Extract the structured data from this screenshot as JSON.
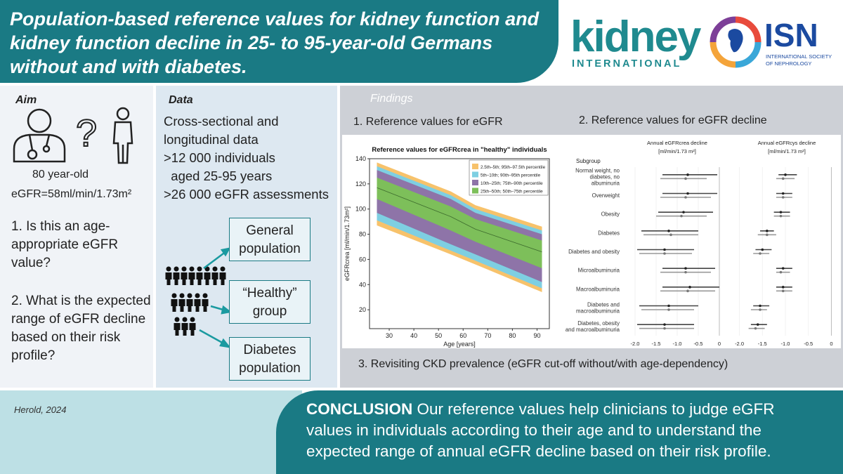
{
  "header": {
    "title_line1": "Population-based reference values for kidney function and",
    "title_line2": "kidney function decline in 25- to 95-year-old Germans",
    "title_line3": "without and with diabetes."
  },
  "logos": {
    "kidney_word": "kidney",
    "kidney_sub": "INTERNATIONAL",
    "isn_word": "ISN",
    "isn_sub_line1": "INTERNATIONAL SOCIETY",
    "isn_sub_line2": "OF NEPHROLOGY"
  },
  "aim": {
    "label": "Aim",
    "age": "80 year-old",
    "egfr": "eGFR=58ml/min/1.73m²",
    "question1": "1. Is this an age-appropriate eGFR value?",
    "question2": "2. What is the expected range of eGFR decline based on their risk profile?"
  },
  "data_panel": {
    "label": "Data",
    "lines": [
      "Cross-sectional and",
      "longitudinal data",
      ">12 000 individuals",
      "  aged 25-95 years",
      ">26 000 eGFR assessments"
    ],
    "groups": [
      "General population",
      "“Healthy” group",
      "Diabetes population"
    ]
  },
  "findings": {
    "label": "Findings",
    "item1": "1. Reference values for eGFR",
    "item2": "2. Reference values for eGFR decline",
    "item3": "3. Revisiting CKD prevalence (eGFR cut-off without/with age-dependency)"
  },
  "chart_data": [
    {
      "type": "area",
      "title": "Reference values for eGFRcrea in \"healthy\" individuals",
      "xlabel": "Age [years]",
      "ylabel": "eGFRcrea [ml/min/1.73m²]",
      "xlim": [
        22,
        95
      ],
      "ylim": [
        5,
        140
      ],
      "xticks": [
        30,
        40,
        50,
        60,
        70,
        80,
        90
      ],
      "yticks": [
        20,
        40,
        60,
        80,
        100,
        120,
        140
      ],
      "x": [
        25,
        55,
        65,
        92
      ],
      "legend": [
        {
          "name": "2.5th–5th; 95th–97.5th percentile",
          "color": "#f7c26b"
        },
        {
          "name": "5th–10th; 90th–95th percentile",
          "color": "#7ecfe2"
        },
        {
          "name": "10th–25th; 75th–90th percentile",
          "color": "#8e74a8"
        },
        {
          "name": "25th–50th; 50th–75th percentile",
          "color": "#7dbf5a"
        }
      ],
      "bands": {
        "p2_5": [
          87,
          64,
          56,
          34
        ],
        "p5": [
          91,
          67,
          59,
          37
        ],
        "p10": [
          97,
          72,
          64,
          42
        ],
        "p25": [
          108,
          83,
          74,
          53
        ],
        "p50": [
          117,
          94,
          84,
          66
        ],
        "p75": [
          125,
          102,
          92,
          75
        ],
        "p90": [
          131,
          108,
          97,
          80
        ],
        "p95": [
          134,
          111,
          100,
          83
        ],
        "p97_5": [
          137,
          114,
          103,
          86
        ]
      }
    },
    {
      "type": "forest",
      "title_left": "Annual eGFRcrea decline",
      "title_right": "Annual eGFRcys decline",
      "unit": "[ml/min/1.73 m²]",
      "header": "Subgroup",
      "xlim": [
        -2.1,
        0.1
      ],
      "xticks": [
        -2.0,
        -1.5,
        -1.0,
        -0.5,
        0
      ],
      "subgroups": [
        "Normal weight, no diabetes, no albuminuria",
        "Overweight",
        "Obesity",
        "Diabetes",
        "Diabetes and obesity",
        "Microalbuminuria",
        "Macroalbuminuria",
        "Diabetes and macroalbuminuria",
        "Diabetes, obesity and macroalbuminuria"
      ],
      "crea": [
        {
          "mean": -0.75,
          "lo": -1.35,
          "hi": -0.05,
          "mean2": -0.8,
          "lo2": -1.4,
          "hi2": -0.3
        },
        {
          "mean": -0.75,
          "lo": -1.35,
          "hi": -0.05,
          "mean2": -0.8,
          "lo2": -1.4,
          "hi2": -0.2
        },
        {
          "mean": -0.85,
          "lo": -1.45,
          "hi": -0.15,
          "mean2": -0.9,
          "lo2": -1.5,
          "hi2": -0.3
        },
        {
          "mean": -1.2,
          "lo": -1.85,
          "hi": -0.5,
          "mean2": -1.15,
          "lo2": -1.8,
          "hi2": -0.5
        },
        {
          "mean": -1.3,
          "lo": -1.95,
          "hi": -0.6,
          "mean2": -1.3,
          "lo2": -1.9,
          "hi2": -0.65
        },
        {
          "mean": -0.8,
          "lo": -1.35,
          "hi": -0.1,
          "mean2": -0.8,
          "lo2": -1.4,
          "hi2": -0.2
        },
        {
          "mean": -0.7,
          "lo": -1.35,
          "hi": 0.0,
          "mean2": -0.75,
          "lo2": -1.4,
          "hi2": -0.1
        },
        {
          "mean": -1.2,
          "lo": -1.9,
          "hi": -0.5,
          "mean2": -1.2,
          "lo2": -1.85,
          "hi2": -0.6
        },
        {
          "mean": -1.3,
          "lo": -1.95,
          "hi": -0.6,
          "mean2": -1.3,
          "lo2": -1.9,
          "hi2": -0.6
        }
      ],
      "cys": [
        {
          "mean": -1.0,
          "lo": -1.15,
          "hi": -0.75,
          "mean2": -1.05,
          "lo2": -1.2,
          "hi2": -0.8
        },
        {
          "mean": -1.05,
          "lo": -1.2,
          "hi": -0.85,
          "mean2": -1.05,
          "lo2": -1.2,
          "hi2": -0.85
        },
        {
          "mean": -1.1,
          "lo": -1.25,
          "hi": -0.9,
          "mean2": -1.1,
          "lo2": -1.25,
          "hi2": -0.9
        },
        {
          "mean": -1.4,
          "lo": -1.55,
          "hi": -1.25,
          "mean2": -1.4,
          "lo2": -1.6,
          "hi2": -1.2
        },
        {
          "mean": -1.5,
          "lo": -1.65,
          "hi": -1.3,
          "mean2": -1.55,
          "lo2": -1.7,
          "hi2": -1.35
        },
        {
          "mean": -1.05,
          "lo": -1.2,
          "hi": -0.85,
          "mean2": -1.1,
          "lo2": -1.2,
          "hi2": -0.9
        },
        {
          "mean": -1.05,
          "lo": -1.2,
          "hi": -0.85,
          "mean2": -1.05,
          "lo2": -1.2,
          "hi2": -0.85
        },
        {
          "mean": -1.55,
          "lo": -1.7,
          "hi": -1.35,
          "mean2": -1.55,
          "lo2": -1.75,
          "hi2": -1.4
        },
        {
          "mean": -1.6,
          "lo": -1.75,
          "hi": -1.4,
          "mean2": -1.65,
          "lo2": -1.8,
          "hi2": -1.45
        }
      ]
    }
  ],
  "footer": {
    "author": "Herold, 2024",
    "conclusion_label": "CONCLUSION",
    "conclusion_line1": " Our reference values help clinicians to judge eGFR",
    "conclusion_line2": "values in individuals according to their age and to understand the",
    "conclusion_line3": "expected range of annual eGFR decline based on their risk profile."
  },
  "colors": {
    "teal": "#1a7a84",
    "light_teal": "#bde0e5",
    "panel_grey": "#cdd0d6",
    "isn_blue": "#1b4aa0"
  }
}
